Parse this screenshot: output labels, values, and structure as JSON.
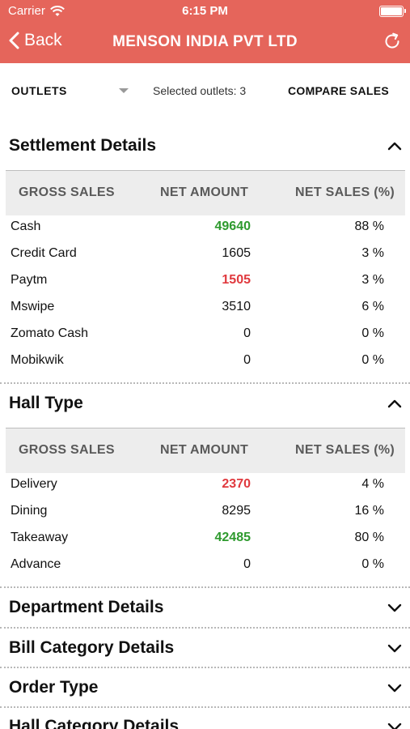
{
  "status": {
    "carrier": "Carrier",
    "time": "6:15 PM"
  },
  "nav": {
    "back": "Back",
    "title": "MENSON INDIA PVT LTD"
  },
  "filter": {
    "outlets": "OUTLETS",
    "selected": "Selected outlets: 3",
    "compare": "COMPARE SALES"
  },
  "columns": {
    "gross": "GROSS SALES",
    "net": "NET AMOUNT",
    "pct": "NET SALES (%)"
  },
  "colors": {
    "header": "#e5655b",
    "high": "#2e9a2e",
    "low": "#e0393e"
  },
  "settlement": {
    "title": "Settlement Details",
    "rows": [
      {
        "name": "Cash",
        "amount": "49640",
        "pct": "88 %"
      },
      {
        "name": "Credit Card",
        "amount": "1605",
        "pct": "3 %"
      },
      {
        "name": "Paytm",
        "amount": "1505",
        "pct": "3 %"
      },
      {
        "name": "Mswipe",
        "amount": "3510",
        "pct": "6 %"
      },
      {
        "name": "Zomato Cash",
        "amount": "0",
        "pct": "0 %"
      },
      {
        "name": "Mobikwik",
        "amount": "0",
        "pct": "0 %"
      }
    ]
  },
  "hall": {
    "title": "Hall Type",
    "rows": [
      {
        "name": "Delivery",
        "amount": "2370",
        "pct": "4 %"
      },
      {
        "name": "Dining",
        "amount": "8295",
        "pct": "16 %"
      },
      {
        "name": "Takeaway",
        "amount": "42485",
        "pct": "80 %"
      },
      {
        "name": "Advance",
        "amount": "0",
        "pct": "0 %"
      }
    ]
  },
  "collapsed": [
    {
      "title": "Department Details"
    },
    {
      "title": "Bill Category Details"
    },
    {
      "title": "Order Type"
    },
    {
      "title": "Hall Category Details"
    }
  ]
}
